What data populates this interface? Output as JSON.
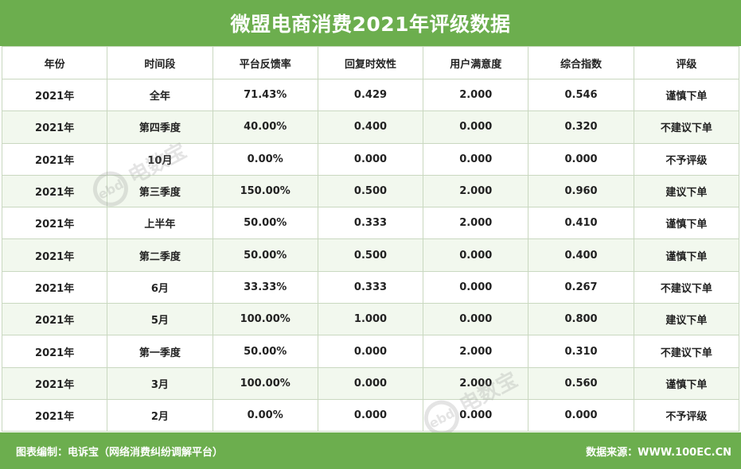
{
  "title": "微盟电商消费2021年评级数据",
  "footer": {
    "left": "图表编制：电诉宝（网络消费纠纷调解平台）",
    "right": "数据来源：WWW.100EC.CN"
  },
  "watermark": {
    "text": "电数宝",
    "logo": "ebd"
  },
  "colors": {
    "brand": "#6cae4e",
    "row_alt": "#f2f8ee",
    "border": "#c9d8c0"
  },
  "chart_data": {
    "type": "table",
    "title": "微盟电商消费2021年评级数据",
    "columns": [
      "年份",
      "时间段",
      "平台反馈率",
      "回复时效性",
      "用户满意度",
      "综合指数",
      "评级"
    ],
    "rows": [
      [
        "2021年",
        "全年",
        "71.43%",
        "0.429",
        "2.000",
        "0.546",
        "谨慎下单"
      ],
      [
        "2021年",
        "第四季度",
        "40.00%",
        "0.400",
        "0.000",
        "0.320",
        "不建议下单"
      ],
      [
        "2021年",
        "10月",
        "0.00%",
        "0.000",
        "0.000",
        "0.000",
        "不予评级"
      ],
      [
        "2021年",
        "第三季度",
        "150.00%",
        "0.500",
        "2.000",
        "0.960",
        "建议下单"
      ],
      [
        "2021年",
        "上半年",
        "50.00%",
        "0.333",
        "2.000",
        "0.410",
        "谨慎下单"
      ],
      [
        "2021年",
        "第二季度",
        "50.00%",
        "0.500",
        "0.000",
        "0.400",
        "谨慎下单"
      ],
      [
        "2021年",
        "6月",
        "33.33%",
        "0.333",
        "0.000",
        "0.267",
        "不建议下单"
      ],
      [
        "2021年",
        "5月",
        "100.00%",
        "1.000",
        "0.000",
        "0.800",
        "建议下单"
      ],
      [
        "2021年",
        "第一季度",
        "50.00%",
        "0.000",
        "2.000",
        "0.310",
        "不建议下单"
      ],
      [
        "2021年",
        "3月",
        "100.00%",
        "0.000",
        "2.000",
        "0.560",
        "谨慎下单"
      ],
      [
        "2021年",
        "2月",
        "0.00%",
        "0.000",
        "0.000",
        "0.000",
        "不予评级"
      ]
    ]
  }
}
